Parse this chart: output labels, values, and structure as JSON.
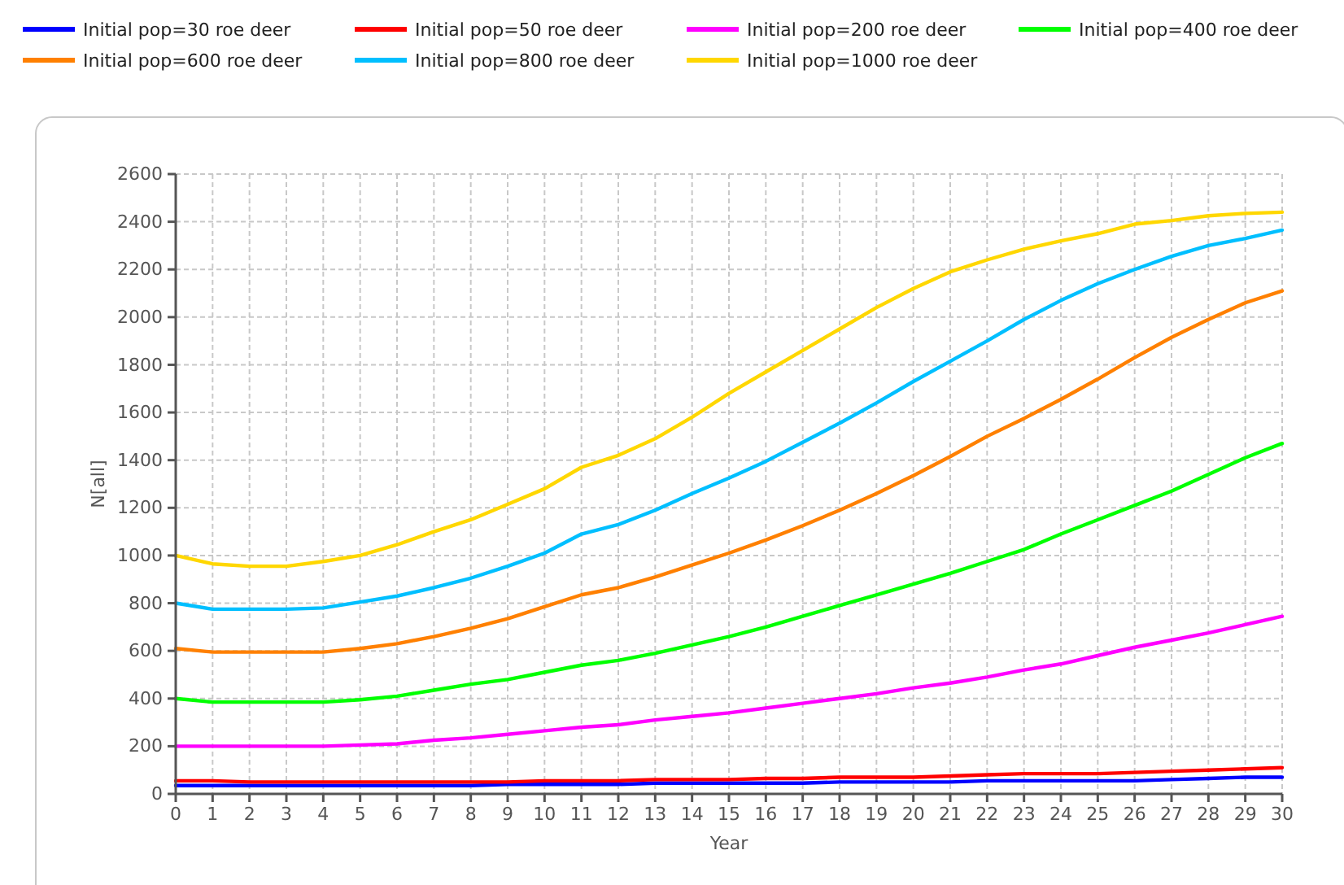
{
  "chart_data": {
    "type": "line",
    "xlabel": "Year",
    "ylabel": "N[all]",
    "x": [
      0,
      1,
      2,
      3,
      4,
      5,
      6,
      7,
      8,
      9,
      10,
      11,
      12,
      13,
      14,
      15,
      16,
      17,
      18,
      19,
      20,
      21,
      22,
      23,
      24,
      25,
      26,
      27,
      28,
      29,
      30
    ],
    "series": [
      {
        "name": "Initial pop=30 roe deer",
        "color": "#0000ff",
        "values": [
          35,
          35,
          35,
          35,
          35,
          35,
          35,
          35,
          35,
          40,
          40,
          40,
          40,
          45,
          45,
          45,
          45,
          45,
          50,
          50,
          50,
          50,
          55,
          55,
          55,
          55,
          55,
          60,
          65,
          70,
          70
        ]
      },
      {
        "name": "Initial pop=50 roe deer",
        "color": "#ff0000",
        "values": [
          55,
          55,
          50,
          50,
          50,
          50,
          50,
          50,
          50,
          50,
          55,
          55,
          55,
          60,
          60,
          60,
          65,
          65,
          70,
          70,
          70,
          75,
          80,
          85,
          85,
          85,
          90,
          95,
          100,
          105,
          110
        ]
      },
      {
        "name": "Initial pop=200 roe deer",
        "color": "#ff00ff",
        "values": [
          200,
          200,
          200,
          200,
          200,
          205,
          210,
          225,
          235,
          250,
          265,
          280,
          290,
          310,
          325,
          340,
          360,
          380,
          400,
          420,
          445,
          465,
          490,
          520,
          545,
          580,
          615,
          645,
          675,
          710,
          745
        ]
      },
      {
        "name": "Initial pop=400 roe deer",
        "color": "#00ff00",
        "values": [
          400,
          385,
          385,
          385,
          385,
          395,
          410,
          435,
          460,
          480,
          510,
          540,
          560,
          590,
          625,
          660,
          700,
          745,
          790,
          835,
          880,
          925,
          975,
          1025,
          1090,
          1150,
          1210,
          1270,
          1340,
          1410,
          1470
        ]
      },
      {
        "name": "Initial pop=600 roe deer",
        "color": "#ff8000",
        "values": [
          610,
          595,
          595,
          595,
          595,
          610,
          630,
          660,
          695,
          735,
          785,
          835,
          865,
          910,
          960,
          1010,
          1065,
          1125,
          1190,
          1260,
          1335,
          1415,
          1500,
          1575,
          1655,
          1740,
          1830,
          1915,
          1990,
          2060,
          2110
        ]
      },
      {
        "name": "Initial pop=800 roe deer",
        "color": "#00bfff",
        "values": [
          800,
          775,
          775,
          775,
          780,
          805,
          830,
          865,
          905,
          955,
          1010,
          1090,
          1130,
          1190,
          1260,
          1325,
          1395,
          1475,
          1555,
          1640,
          1730,
          1815,
          1900,
          1990,
          2070,
          2140,
          2200,
          2255,
          2300,
          2330,
          2365
        ]
      },
      {
        "name": "Initial pop=1000 roe deer",
        "color": "#ffd700",
        "values": [
          1000,
          965,
          955,
          955,
          975,
          1000,
          1045,
          1100,
          1150,
          1215,
          1280,
          1370,
          1420,
          1490,
          1580,
          1680,
          1770,
          1860,
          1950,
          2040,
          2120,
          2190,
          2240,
          2285,
          2320,
          2350,
          2390,
          2405,
          2425,
          2435,
          2440
        ]
      }
    ],
    "xlim": [
      0,
      30
    ],
    "xticks": [
      0,
      1,
      2,
      3,
      4,
      5,
      6,
      7,
      8,
      9,
      10,
      11,
      12,
      13,
      14,
      15,
      16,
      17,
      18,
      19,
      20,
      21,
      22,
      23,
      24,
      25,
      26,
      27,
      28,
      29,
      30
    ],
    "ylim": [
      0,
      2600
    ],
    "yticks": [
      0,
      200,
      400,
      600,
      800,
      1000,
      1200,
      1400,
      1600,
      1800,
      2000,
      2200,
      2400,
      2600
    ],
    "grid": true,
    "legend": "top",
    "line_style": "solid"
  }
}
